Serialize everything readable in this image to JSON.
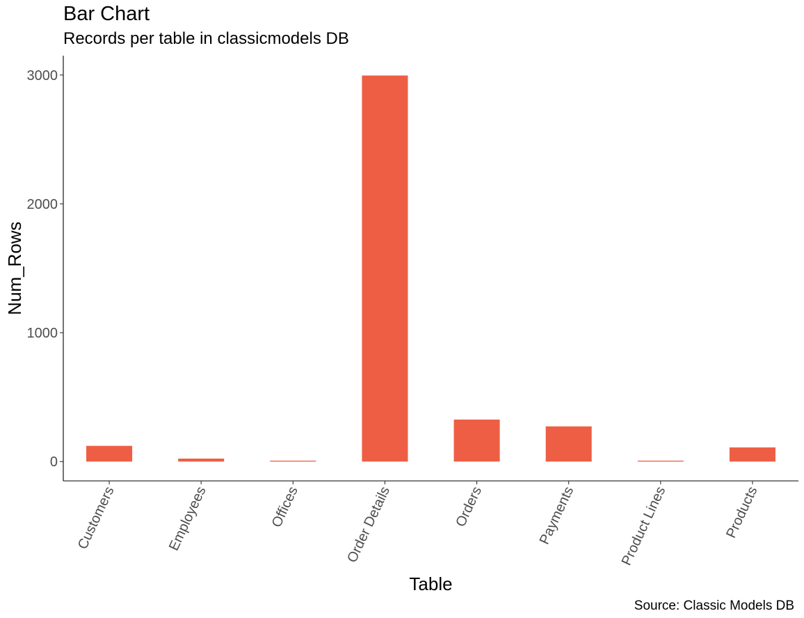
{
  "chart_data": {
    "type": "bar",
    "title": "Bar Chart",
    "subtitle": "Records per table in classicmodels DB",
    "caption": "Source: Classic Models DB",
    "xlabel": "Table",
    "ylabel": "Num_Rows",
    "categories": [
      "Customers",
      "Employees",
      "Offices",
      "Order Details",
      "Orders",
      "Payments",
      "Product Lines",
      "Products"
    ],
    "values": [
      122,
      23,
      7,
      2996,
      326,
      273,
      7,
      110
    ],
    "ylim": [
      -150,
      3150
    ],
    "yticks": [
      0,
      1000,
      2000,
      3000
    ],
    "bar_color": "#EE5E44",
    "axis_color": "#000000",
    "grid": false
  }
}
